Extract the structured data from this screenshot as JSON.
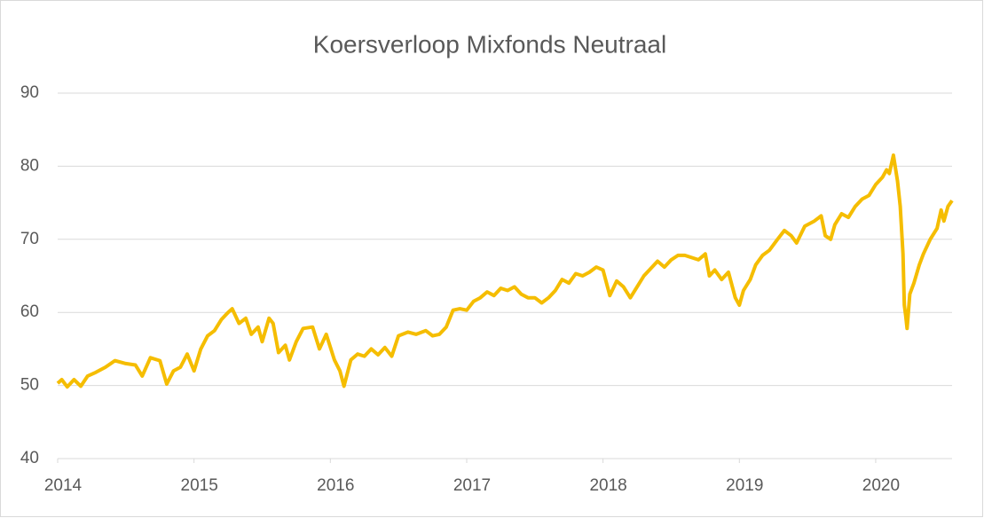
{
  "chart_data": {
    "type": "line",
    "title": "Koersverloop Mixfonds Neutraal",
    "x": [
      2014.0,
      2014.03,
      2014.07,
      2014.12,
      2014.17,
      2014.22,
      2014.28,
      2014.35,
      2014.42,
      2014.5,
      2014.57,
      2014.62,
      2014.68,
      2014.75,
      2014.8,
      2014.85,
      2014.9,
      2014.95,
      2015.0,
      2015.05,
      2015.1,
      2015.15,
      2015.2,
      2015.25,
      2015.28,
      2015.33,
      2015.38,
      2015.42,
      2015.47,
      2015.5,
      2015.55,
      2015.58,
      2015.62,
      2015.67,
      2015.7,
      2015.75,
      2015.8,
      2015.87,
      2015.92,
      2015.97,
      2016.03,
      2016.07,
      2016.1,
      2016.15,
      2016.2,
      2016.25,
      2016.3,
      2016.35,
      2016.4,
      2016.45,
      2016.5,
      2016.57,
      2016.63,
      2016.7,
      2016.75,
      2016.8,
      2016.85,
      2016.9,
      2016.95,
      2017.0,
      2017.05,
      2017.1,
      2017.15,
      2017.2,
      2017.25,
      2017.3,
      2017.35,
      2017.4,
      2017.45,
      2017.5,
      2017.55,
      2017.6,
      2017.65,
      2017.7,
      2017.75,
      2017.8,
      2017.85,
      2017.9,
      2017.95,
      2018.0,
      2018.05,
      2018.1,
      2018.15,
      2018.2,
      2018.25,
      2018.3,
      2018.35,
      2018.4,
      2018.45,
      2018.5,
      2018.55,
      2018.6,
      2018.65,
      2018.7,
      2018.75,
      2018.78,
      2018.82,
      2018.87,
      2018.92,
      2018.97,
      2019.0,
      2019.03,
      2019.08,
      2019.12,
      2019.17,
      2019.22,
      2019.28,
      2019.33,
      2019.38,
      2019.42,
      2019.48,
      2019.55,
      2019.6,
      2019.63,
      2019.67,
      2019.7,
      2019.75,
      2019.8,
      2019.85,
      2019.9,
      2019.95,
      2020.0,
      2020.05,
      2020.08,
      2020.1,
      2020.13,
      2020.16,
      2020.18,
      2020.2,
      2020.21,
      2020.22,
      2020.23,
      2020.25,
      2020.28,
      2020.32,
      2020.35,
      2020.4,
      2020.45,
      2020.48,
      2020.5,
      2020.53,
      2020.56
    ],
    "series": [
      {
        "color": "#f5bd00",
        "values": [
          50.3,
          50.8,
          49.8,
          50.8,
          49.9,
          51.3,
          51.8,
          52.5,
          53.4,
          53.0,
          52.8,
          51.3,
          53.8,
          53.4,
          50.2,
          52.0,
          52.5,
          54.3,
          52.0,
          55.0,
          56.8,
          57.5,
          59.0,
          60.0,
          60.5,
          58.5,
          59.2,
          57.0,
          58.0,
          56.0,
          59.2,
          58.5,
          54.5,
          55.5,
          53.5,
          56.0,
          57.8,
          58.0,
          55.0,
          57.0,
          53.5,
          52.0,
          49.9,
          53.5,
          54.3,
          54.0,
          55.0,
          54.2,
          55.2,
          54.0,
          56.8,
          57.3,
          57.0,
          57.5,
          56.8,
          57.0,
          58.0,
          60.3,
          60.5,
          60.3,
          61.5,
          62.0,
          62.8,
          62.3,
          63.3,
          63.0,
          63.5,
          62.5,
          62.0,
          62.0,
          61.3,
          62.0,
          63.0,
          64.5,
          64.0,
          65.3,
          65.0,
          65.5,
          66.2,
          65.8,
          62.3,
          64.3,
          63.5,
          62.0,
          63.5,
          65.0,
          66.0,
          67.0,
          66.2,
          67.2,
          67.8,
          67.8,
          67.5,
          67.2,
          68.0,
          65.0,
          65.8,
          64.5,
          65.5,
          62.0,
          61.0,
          63.0,
          64.5,
          66.5,
          67.8,
          68.5,
          70.0,
          71.2,
          70.5,
          69.5,
          71.8,
          72.5,
          73.2,
          70.5,
          70.0,
          72.0,
          73.5,
          73.0,
          74.5,
          75.5,
          76.0,
          77.5,
          78.5,
          79.5,
          79.0,
          81.5,
          78.0,
          74.5,
          68.0,
          61.0,
          59.5,
          57.8,
          62.5,
          64.0,
          66.5,
          68.0,
          70.0,
          71.5,
          74.0,
          72.5,
          74.5,
          75.3
        ]
      }
    ],
    "xlim": [
      2014,
      2020.56
    ],
    "xticks": [
      2014,
      2015,
      2016,
      2017,
      2018,
      2019,
      2020
    ],
    "ylim": [
      40,
      90
    ],
    "yticks": [
      40,
      50,
      60,
      70,
      80,
      90
    ],
    "grid": true
  }
}
